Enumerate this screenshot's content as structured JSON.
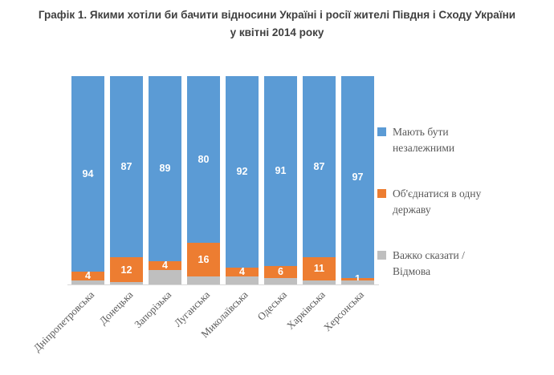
{
  "title": {
    "line1": "Графік 1. Якими хотіли би бачити відносини Україні і росії жителі Півдня і Сходу України",
    "line2": "у квітні 2014 року"
  },
  "chart_data": {
    "type": "bar",
    "stacked": true,
    "orientation": "vertical",
    "grid": false,
    "legend_position": "right",
    "ylim": [
      0,
      100
    ],
    "categories": [
      "Дніпропетровська",
      "Донецька",
      "Запорізька",
      "Луганська",
      "Миколаївська",
      "Одеська",
      "Харківська",
      "Херсонська"
    ],
    "series": [
      {
        "key": "independent",
        "name": "Мають бути незалежними",
        "legend_lines": [
          "Мають бути",
          "незалежними"
        ],
        "color": "#5B9BD5",
        "data_labels": true,
        "values": [
          94,
          87,
          89,
          80,
          92,
          91,
          87,
          97
        ]
      },
      {
        "key": "unite-one-state",
        "name": "Об'єднатися в одну державу",
        "legend_lines": [
          "Об'єднатися в одну",
          "державу"
        ],
        "color": "#ED7D31",
        "data_labels": true,
        "values": [
          4,
          12,
          4,
          16,
          4,
          6,
          11,
          1
        ]
      },
      {
        "key": "hard-to-say",
        "name": "Важко сказати / Відмова",
        "legend_lines": [
          "Важко сказати /",
          "Відмова"
        ],
        "color": "#BFBFBF",
        "data_labels": false,
        "values": [
          2,
          1,
          7,
          4,
          4,
          3,
          2,
          2
        ]
      }
    ]
  }
}
